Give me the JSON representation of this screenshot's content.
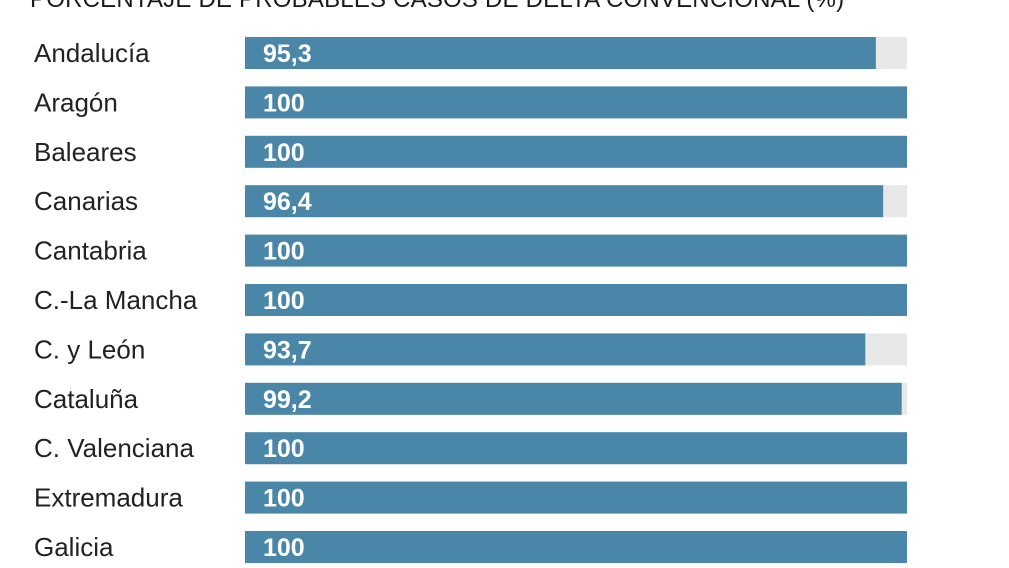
{
  "chart_data": {
    "type": "bar",
    "orientation": "horizontal",
    "title": "PORCENTAJE DE PROBABLES CASOS DE DELTA CONVENCIONAL (%)",
    "categories": [
      "Andalucía",
      "Aragón",
      "Baleares",
      "Canarias",
      "Cantabria",
      "C.-La Mancha",
      "C. y León",
      "Cataluña",
      "C. Valenciana",
      "Extremadura",
      "Galicia"
    ],
    "values": [
      95.3,
      100,
      100,
      96.4,
      100,
      100,
      93.7,
      99.2,
      100,
      100,
      100
    ],
    "value_labels": [
      "95,3",
      "100",
      "100",
      "96,4",
      "100",
      "100",
      "93,7",
      "99,2",
      "100",
      "100",
      "100"
    ],
    "xlim": [
      0,
      100
    ],
    "grid": false,
    "colors": {
      "bar": "#4a86a8",
      "track": "#e8e8e8"
    }
  }
}
